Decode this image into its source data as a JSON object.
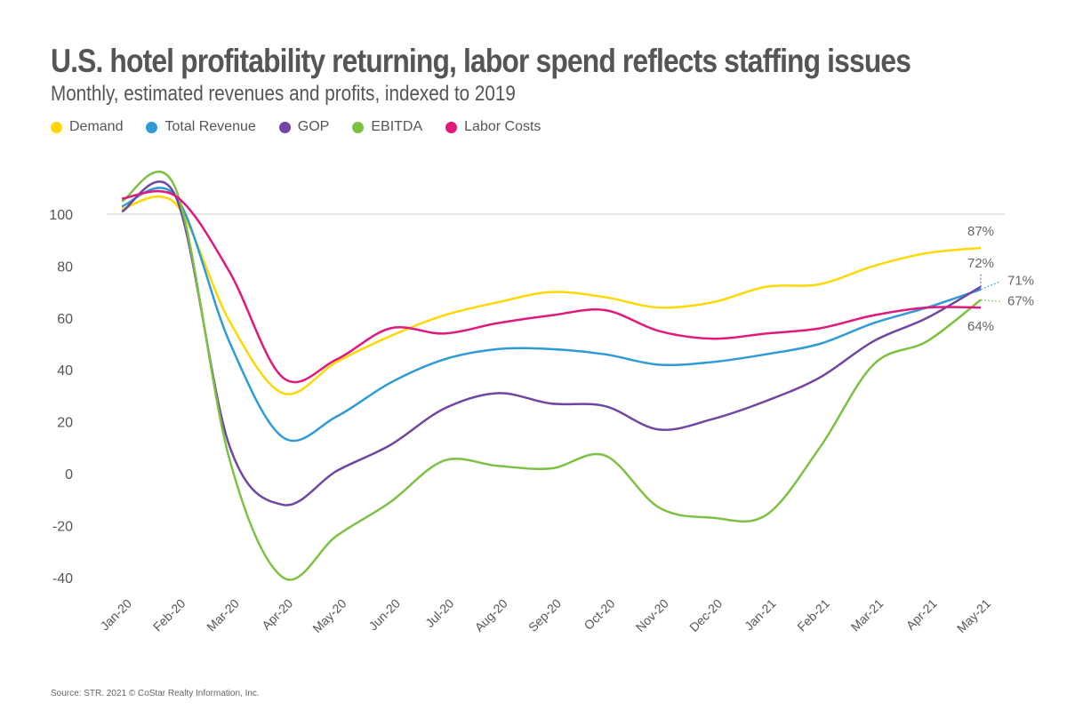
{
  "title": "U.S. hotel profitability returning, labor spend reflects staffing issues",
  "subtitle": "Monthly, estimated revenues and profits, indexed to 2019",
  "source": "Source: STR. 2021 © CoStar Realty Information, Inc.",
  "chart_data": {
    "type": "line",
    "title": "U.S. hotel profitability returning, labor spend reflects staffing issues",
    "subtitle": "Monthly, estimated revenues and profits, indexed to 2019",
    "categories": [
      "Jan-20",
      "Feb-20",
      "Mar-20",
      "Apr-20",
      "May-20",
      "Jun-20",
      "Jul-20",
      "Aug-20",
      "Sep-20",
      "Oct-20",
      "Nov-20",
      "Dec-20",
      "Jan-21",
      "Feb-21",
      "Mar-21",
      "Apr-21",
      "May-21"
    ],
    "yticks": [
      100,
      80,
      60,
      40,
      20,
      0,
      -20,
      -40
    ],
    "ylim": [
      -45,
      115
    ],
    "grid": "single line at 100",
    "legend": "top-left",
    "series": [
      {
        "name": "Demand",
        "color": "#FFD800",
        "values": [
          102,
          104,
          59,
          31,
          43,
          53,
          61,
          66,
          70,
          68,
          64,
          66,
          72,
          73,
          80,
          85,
          87
        ],
        "end_label": "87%"
      },
      {
        "name": "Total Revenue",
        "color": "#2E9BD6",
        "values": [
          103,
          107,
          51,
          14,
          22,
          35,
          44,
          48,
          48,
          46,
          42,
          43,
          46,
          50,
          58,
          64,
          71
        ],
        "end_label": "71%"
      },
      {
        "name": "GOP",
        "color": "#6F46A0",
        "values": [
          101,
          107,
          11,
          -12,
          1,
          11,
          25,
          31,
          27,
          26,
          17,
          21,
          28,
          37,
          51,
          60,
          72
        ],
        "end_label": "72%"
      },
      {
        "name": "EBITDA",
        "color": "#7DC142",
        "values": [
          105,
          110,
          6,
          -40,
          -24,
          -11,
          5,
          3,
          2,
          7,
          -13,
          -17,
          -16,
          10,
          42,
          51,
          67
        ],
        "end_label": "67%"
      },
      {
        "name": "Labor Costs",
        "color": "#E0197D",
        "values": [
          106,
          107,
          78,
          37,
          44,
          56,
          54,
          58,
          61,
          63,
          55,
          52,
          54,
          56,
          61,
          64,
          64
        ],
        "end_label": "64%"
      }
    ]
  }
}
